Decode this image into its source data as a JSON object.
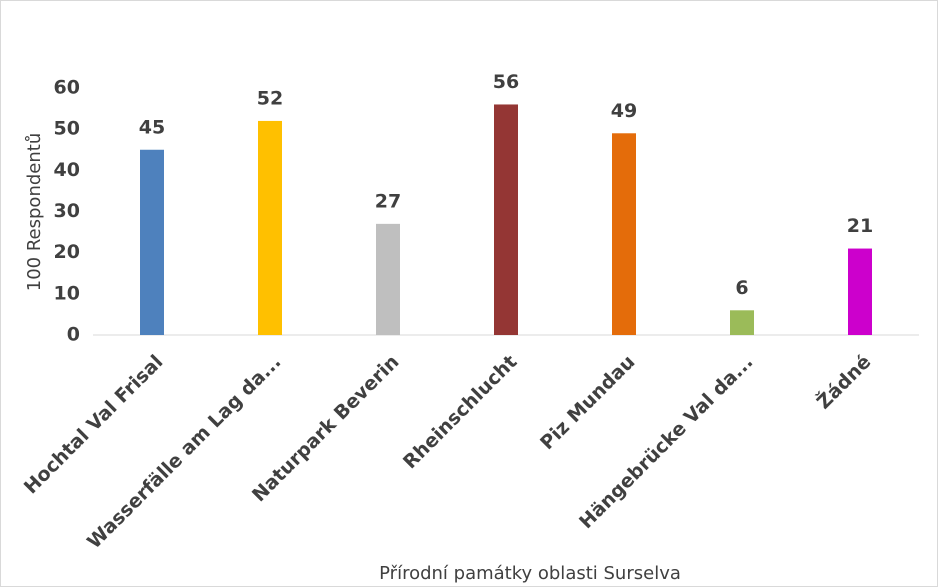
{
  "chart_data": {
    "type": "bar",
    "categories": [
      "Hochtal Val Frisal",
      "Wasserfälle am Lag da...",
      "Naturpark Beverin",
      "Rheinschlucht",
      "Piz Mundau",
      "Hängebrücke Val da...",
      "Žádné"
    ],
    "values": [
      45,
      52,
      27,
      56,
      49,
      6,
      21
    ],
    "colors": [
      "#4e81bd",
      "#ffc000",
      "#bfbfbf",
      "#943634",
      "#e46c0a",
      "#9bbb59",
      "#cc00cc"
    ],
    "ylabel": "100 Respondentů",
    "xlabel": "Přírodní památky oblasti Surselva",
    "ylim": [
      0,
      60
    ],
    "yticks": [
      0,
      10,
      20,
      30,
      40,
      50,
      60
    ],
    "grid": false
  }
}
